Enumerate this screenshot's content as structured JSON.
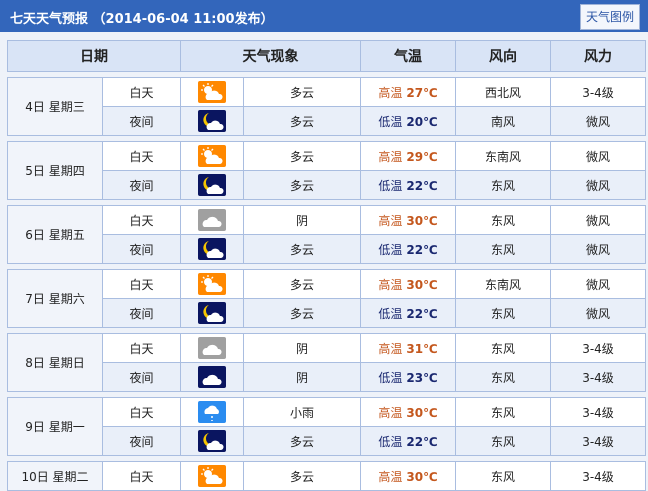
{
  "header": {
    "title": "七天天气预报 （2014-06-04 11:00发布）",
    "legend_button": "天气图例"
  },
  "columns": [
    "日期",
    "天气现象",
    "气温",
    "风向",
    "风力"
  ],
  "colors": {
    "header_bar": "#3366bb",
    "high_temp": "#c4571d",
    "low_temp": "#1a2870",
    "sunny_icon": "#ff8800",
    "night_icon": "#0a1560",
    "overcast_icon": "#a0a0a0",
    "rain_icon": "#2a8cf0"
  },
  "days": [
    {
      "date": "4日 星期三",
      "rows": [
        {
          "period": "白天",
          "icon": "partly-cloudy-day-icon",
          "weather": "多云",
          "temp_label": "高温",
          "temp": "27℃",
          "wind_dir": "西北风",
          "wind_force": "3-4级"
        },
        {
          "period": "夜间",
          "icon": "partly-cloudy-night-icon",
          "weather": "多云",
          "temp_label": "低温",
          "temp": "20℃",
          "wind_dir": "南风",
          "wind_force": "微风"
        }
      ]
    },
    {
      "date": "5日 星期四",
      "rows": [
        {
          "period": "白天",
          "icon": "partly-cloudy-day-icon",
          "weather": "多云",
          "temp_label": "高温",
          "temp": "29℃",
          "wind_dir": "东南风",
          "wind_force": "微风"
        },
        {
          "period": "夜间",
          "icon": "partly-cloudy-night-icon",
          "weather": "多云",
          "temp_label": "低温",
          "temp": "22℃",
          "wind_dir": "东风",
          "wind_force": "微风"
        }
      ]
    },
    {
      "date": "6日 星期五",
      "rows": [
        {
          "period": "白天",
          "icon": "overcast-day-icon",
          "weather": "阴",
          "temp_label": "高温",
          "temp": "30℃",
          "wind_dir": "东风",
          "wind_force": "微风"
        },
        {
          "period": "夜间",
          "icon": "partly-cloudy-night-icon",
          "weather": "多云",
          "temp_label": "低温",
          "temp": "22℃",
          "wind_dir": "东风",
          "wind_force": "微风"
        }
      ]
    },
    {
      "date": "7日 星期六",
      "rows": [
        {
          "period": "白天",
          "icon": "partly-cloudy-day-icon",
          "weather": "多云",
          "temp_label": "高温",
          "temp": "30℃",
          "wind_dir": "东南风",
          "wind_force": "微风"
        },
        {
          "period": "夜间",
          "icon": "partly-cloudy-night-icon",
          "weather": "多云",
          "temp_label": "低温",
          "temp": "22℃",
          "wind_dir": "东风",
          "wind_force": "微风"
        }
      ]
    },
    {
      "date": "8日 星期日",
      "rows": [
        {
          "period": "白天",
          "icon": "overcast-day-icon",
          "weather": "阴",
          "temp_label": "高温",
          "temp": "31℃",
          "wind_dir": "东风",
          "wind_force": "3-4级"
        },
        {
          "period": "夜间",
          "icon": "overcast-night-icon",
          "weather": "阴",
          "temp_label": "低温",
          "temp": "23℃",
          "wind_dir": "东风",
          "wind_force": "3-4级"
        }
      ]
    },
    {
      "date": "9日 星期一",
      "rows": [
        {
          "period": "白天",
          "icon": "light-rain-icon",
          "weather": "小雨",
          "temp_label": "高温",
          "temp": "30℃",
          "wind_dir": "东风",
          "wind_force": "3-4级"
        },
        {
          "period": "夜间",
          "icon": "partly-cloudy-night-icon",
          "weather": "多云",
          "temp_label": "低温",
          "temp": "22℃",
          "wind_dir": "东风",
          "wind_force": "3-4级"
        }
      ]
    },
    {
      "date": "10日 星期二",
      "rows": [
        {
          "period": "白天",
          "icon": "partly-cloudy-day-icon",
          "weather": "多云",
          "temp_label": "高温",
          "temp": "30℃",
          "wind_dir": "东风",
          "wind_force": "3-4级"
        }
      ]
    }
  ]
}
